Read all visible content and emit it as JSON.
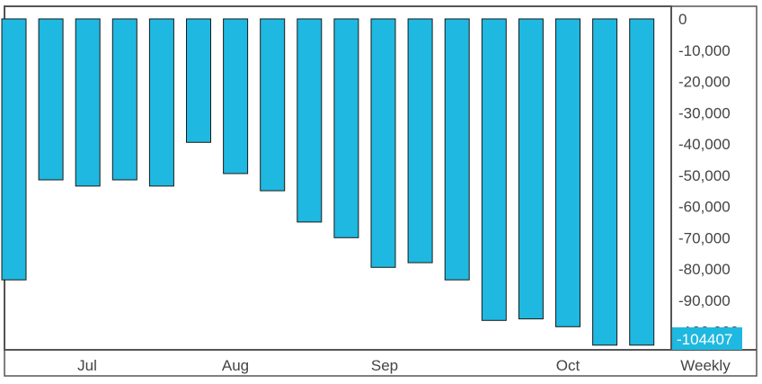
{
  "chart_data": {
    "type": "bar",
    "series": [
      {
        "values": [
          -83500,
          -51500,
          -53500,
          -51500,
          -53500,
          -39500,
          -49500,
          -55000,
          -65000,
          -70000,
          -79500,
          -78000,
          -83500,
          -96500,
          -96000,
          -98500,
          -104407,
          -104407
        ]
      }
    ],
    "x_tick_labels": [
      "Jul",
      "Aug",
      "Sep",
      "Oct"
    ],
    "period_label": "Weekly",
    "y_ticks": [
      0,
      -10000,
      -20000,
      -30000,
      -40000,
      -50000,
      -60000,
      -70000,
      -80000,
      -90000,
      -100000
    ],
    "y_tick_labels": [
      "0",
      "-10,000",
      "-20,000",
      "-30,000",
      "-40,000",
      "-50,000",
      "-60,000",
      "-70,000",
      "-80,000",
      "-90,000",
      "-100,000"
    ],
    "ylim": [
      -107000,
      0
    ],
    "last_value_label": "-104407",
    "grid": false,
    "colors": {
      "bar_fill": "#1fb8e0",
      "bar_stroke": "#1a1a1a",
      "axis_text": "#444444",
      "frame": "#555555",
      "last_value_bg": "#1fb8e0",
      "last_value_text": "#ffffff"
    }
  }
}
